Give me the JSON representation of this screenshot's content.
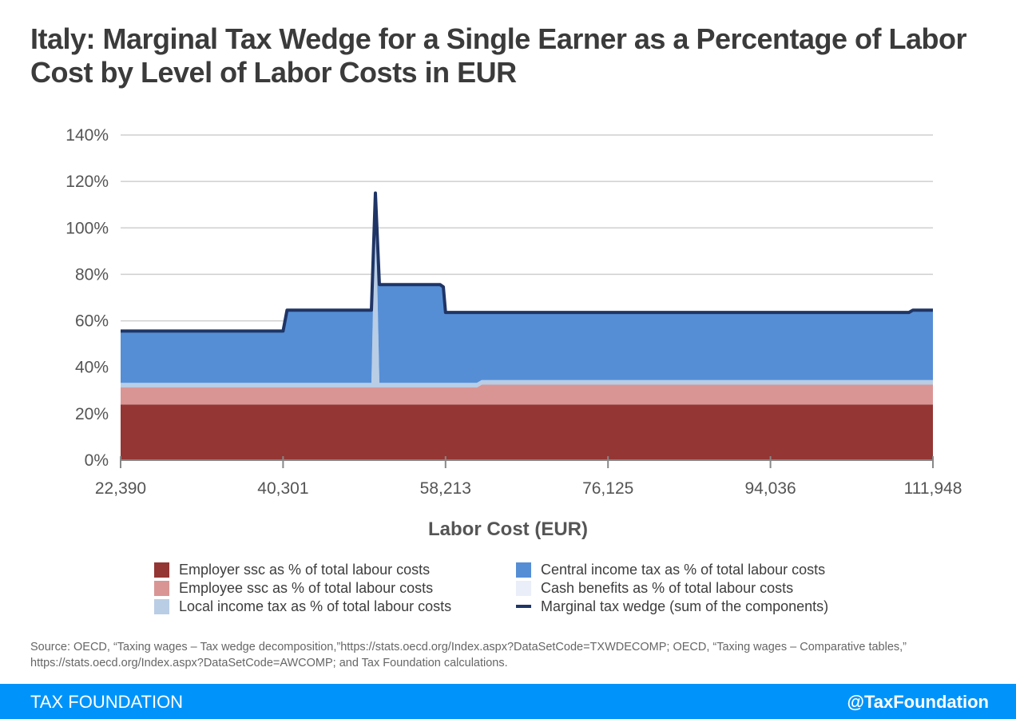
{
  "title": "Italy: Marginal Tax Wedge for a Single Earner as a Percentage of Labor Cost by Level of Labor Costs in EUR",
  "chart_data": {
    "type": "area",
    "stacked": true,
    "title": "Italy: Marginal Tax Wedge for a Single Earner as a Percentage of Labor Cost by Level of Labor Costs in EUR",
    "xlabel": "Labor Cost (EUR)",
    "ylabel": "",
    "xlim": [
      22390,
      111948
    ],
    "ylim": [
      0,
      140
    ],
    "x_ticks": [
      "22,390",
      "40,301",
      "58,213",
      "76,125",
      "94,036",
      "111,948"
    ],
    "x_tick_values": [
      22390,
      40301,
      58213,
      76125,
      94036,
      111948
    ],
    "y_ticks": [
      "0%",
      "20%",
      "40%",
      "60%",
      "80%",
      "100%",
      "120%",
      "140%"
    ],
    "y_tick_values": [
      0,
      20,
      40,
      60,
      80,
      100,
      120,
      140
    ],
    "grid": true,
    "legend_position": "bottom",
    "x": [
      22390,
      40301,
      40740,
      50040,
      50480,
      50920,
      57615,
      57970,
      58213,
      61660,
      62190,
      109300,
      109740,
      111948
    ],
    "series": [
      {
        "name": "Employer ssc as % of total labour costs",
        "color": "#943634",
        "kind": "area",
        "values": [
          24,
          24,
          24,
          24,
          24,
          24,
          24,
          24,
          24,
          24,
          24,
          24,
          24,
          24
        ]
      },
      {
        "name": "Employee ssc as % of total labour costs",
        "color": "#d99594",
        "kind": "area",
        "values": [
          7.3,
          7.3,
          7.3,
          7.3,
          7.3,
          7.3,
          7.3,
          7.3,
          7.3,
          7.3,
          8.5,
          8.5,
          8.5,
          8.5
        ]
      },
      {
        "name": "Local income tax as % of total labour costs",
        "color": "#b9cde5",
        "kind": "area",
        "values": [
          2,
          2,
          2,
          2,
          82,
          2,
          2,
          2,
          2,
          2,
          2,
          2,
          2,
          2
        ]
      },
      {
        "name": "Central income tax as % of total labour costs",
        "color": "#558ed5",
        "kind": "area",
        "values": [
          22.3,
          22.3,
          31.3,
          31.3,
          1.7,
          42.3,
          42.3,
          41.3,
          30.3,
          30.3,
          29.1,
          29.1,
          30.1,
          30.1
        ]
      },
      {
        "name": "Cash benefits as % of total labour costs",
        "color": "#eaeef8",
        "kind": "area",
        "values": [
          0,
          0,
          0,
          0,
          0,
          0,
          0,
          0,
          0,
          0,
          0,
          0,
          0,
          0
        ]
      },
      {
        "name": "Marginal tax wedge (sum of the components)",
        "color": "#1f3566",
        "kind": "line",
        "values": [
          55.6,
          55.6,
          64.6,
          64.6,
          115,
          75.6,
          75.6,
          74.6,
          63.6,
          63.6,
          63.6,
          63.6,
          64.6,
          64.6
        ]
      }
    ]
  },
  "source": "Source: OECD, “Taxing wages – Tax wedge decomposition,”https://stats.oecd.org/Index.aspx?DataSetCode=TXWDECOMP; OECD, “Taxing wages – Comparative tables,” https://stats.oecd.org/Index.aspx?DataSetCode=AWCOMP; and Tax Foundation calculations.",
  "footer": {
    "brand": "TAX FOUNDATION",
    "handle": "@TaxFoundation",
    "color": "#0094fb"
  }
}
